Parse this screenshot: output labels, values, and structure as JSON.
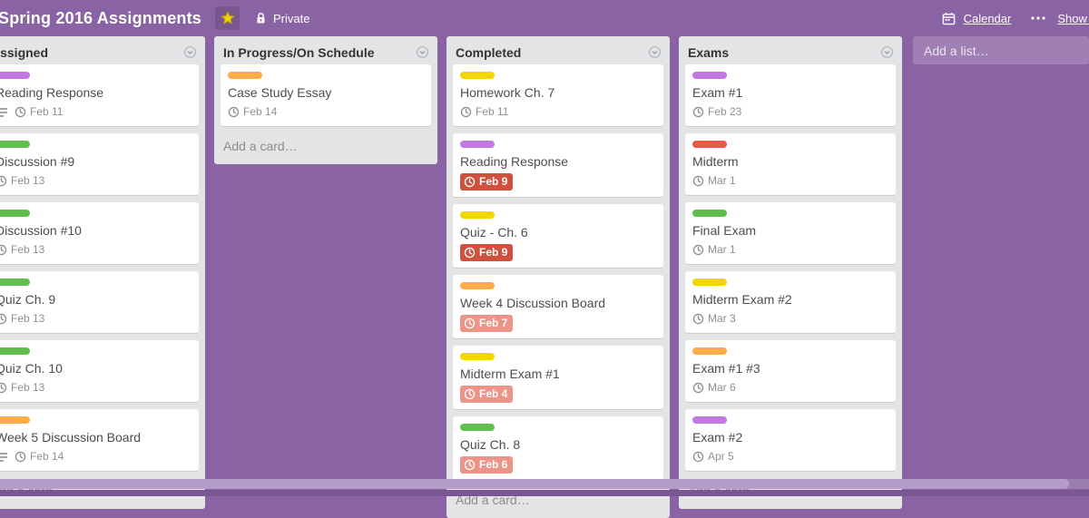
{
  "board": {
    "title": "Spring 2016 Assignments",
    "privacy_label": "Private",
    "calendar_label": "Calendar",
    "show_menu_label": "Show Menu",
    "add_list_placeholder": "Add a list…",
    "add_card_label": "Add a card…"
  },
  "colors": {
    "board_background": "#8a63a4",
    "list_background": "#e2e4e6",
    "labels": {
      "purple": "#c377e0",
      "green": "#61bd4f",
      "yellow": "#f2d600",
      "orange": "#ffab4a",
      "red": "#eb5a46"
    },
    "due_overdue": "#cf513d",
    "due_past": "#ec9488",
    "star": "#f0d500",
    "scrollbar_thumb": "#b49cc8",
    "scrollbar_track": "#9b7daf",
    "footer_strip": "#7a5692"
  },
  "lists": [
    {
      "name": "Assigned",
      "cards": [
        {
          "title": "Reading Response",
          "label": "purple",
          "due": "Feb 11",
          "due_state": "normal",
          "has_description": true
        },
        {
          "title": "Discussion #9",
          "label": "green",
          "due": "Feb 13",
          "due_state": "normal",
          "has_description": false
        },
        {
          "title": "Discussion #10",
          "label": "green",
          "due": "Feb 13",
          "due_state": "normal",
          "has_description": false
        },
        {
          "title": "Quiz Ch. 9",
          "label": "green",
          "due": "Feb 13",
          "due_state": "normal",
          "has_description": false
        },
        {
          "title": "Quiz Ch. 10",
          "label": "green",
          "due": "Feb 13",
          "due_state": "normal",
          "has_description": false
        },
        {
          "title": "Week 5 Discussion Board",
          "label": "orange",
          "due": "Feb 14",
          "due_state": "normal",
          "has_description": true
        }
      ]
    },
    {
      "name": "In Progress/On Schedule",
      "cards": [
        {
          "title": "Case Study Essay",
          "label": "orange",
          "due": "Feb 14",
          "due_state": "normal",
          "has_description": false
        }
      ]
    },
    {
      "name": "Completed",
      "cards": [
        {
          "title": "Homework Ch. 7",
          "label": "yellow",
          "due": "Feb 11",
          "due_state": "normal",
          "has_description": false
        },
        {
          "title": "Reading Response",
          "label": "purple",
          "due": "Feb 9",
          "due_state": "overdue",
          "has_description": false
        },
        {
          "title": "Quiz - Ch. 6",
          "label": "yellow",
          "due": "Feb 9",
          "due_state": "overdue",
          "has_description": false
        },
        {
          "title": "Week 4 Discussion Board",
          "label": "orange",
          "due": "Feb 7",
          "due_state": "past",
          "has_description": false
        },
        {
          "title": "Midterm Exam #1",
          "label": "yellow",
          "due": "Feb 4",
          "due_state": "past",
          "has_description": false
        },
        {
          "title": "Quiz Ch. 8",
          "label": "green",
          "due": "Feb 6",
          "due_state": "past",
          "has_description": false
        }
      ]
    },
    {
      "name": "Exams",
      "cards": [
        {
          "title": "Exam #1",
          "label": "purple",
          "due": "Feb 23",
          "due_state": "normal",
          "has_description": false
        },
        {
          "title": "Midterm",
          "label": "red",
          "due": "Mar 1",
          "due_state": "normal",
          "has_description": false
        },
        {
          "title": "Final Exam",
          "label": "green",
          "due": "Mar 1",
          "due_state": "normal",
          "has_description": false
        },
        {
          "title": "Midterm Exam #2",
          "label": "yellow",
          "due": "Mar 3",
          "due_state": "normal",
          "has_description": false
        },
        {
          "title": "Exam #1 #3",
          "label": "orange",
          "due": "Mar 6",
          "due_state": "normal",
          "has_description": false
        },
        {
          "title": "Exam #2",
          "label": "purple",
          "due": "Apr 5",
          "due_state": "normal",
          "has_description": false
        }
      ]
    }
  ]
}
